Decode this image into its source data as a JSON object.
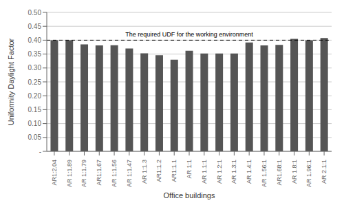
{
  "chart_data": {
    "type": "bar",
    "categories": [
      "AR1:2.04",
      "AR 1:1.89",
      "AR 1:1.79",
      "AR1:1.67",
      "AR 1:1.56",
      "AR 1:1.47",
      "AR 1:1.3",
      "AR1:1.2",
      "AR1:1.1",
      "AR 1:1",
      "AR 1.1:1",
      "AR 1.2:1",
      "AR 1.3:1",
      "AR 1.4:1",
      "AR 1.56:1",
      "AR1.68:1",
      "AR 1.8:1",
      "AR 1.96:1",
      "AR 2.1:1"
    ],
    "values": [
      0.4,
      0.4,
      0.385,
      0.381,
      0.382,
      0.37,
      0.353,
      0.346,
      0.33,
      0.362,
      0.352,
      0.352,
      0.352,
      0.392,
      0.381,
      0.383,
      0.405,
      0.4,
      0.408
    ],
    "color": "#555555",
    "xlabel": "Office buildings",
    "ylabel": "Uniformity Daylight Factor",
    "ylim": [
      0,
      0.5
    ],
    "yticks": [
      {
        "value": 0.0,
        "label": "-"
      },
      0.05,
      {
        "value": 0.1,
        "label": "0.10"
      },
      0.15,
      {
        "value": 0.2,
        "label": "0.20"
      },
      0.25,
      {
        "value": 0.3,
        "label": "0.30"
      },
      0.35,
      {
        "value": 0.4,
        "label": "0.40"
      },
      0.45,
      {
        "value": 0.5,
        "label": "0.50"
      }
    ],
    "grid": true,
    "reference_line": {
      "value": 0.4,
      "label": "The required UDF for the working environment",
      "line_style": "dashed",
      "color": "#000000"
    }
  }
}
